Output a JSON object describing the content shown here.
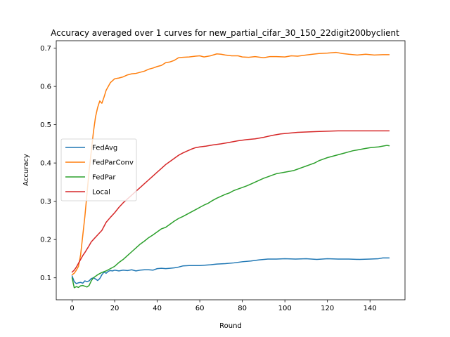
{
  "chart_data": {
    "type": "line",
    "title": "Accuracy averaged over 1 curves for new_partial_cifar_30_150_22digit200byclient",
    "xlabel": "Round",
    "ylabel": "Accuracy",
    "xlim": [
      -7.45,
      156.45
    ],
    "ylim": [
      0.0426,
      0.7194
    ],
    "xticks": [
      0,
      20,
      40,
      60,
      80,
      100,
      120,
      140
    ],
    "yticks": [
      0.1,
      0.2,
      0.3,
      0.4,
      0.5,
      0.6,
      0.7
    ],
    "legend_position": "center-left",
    "grid": false,
    "series": [
      {
        "name": "FedAvg",
        "color": "#1f77b4",
        "points": [
          [
            0,
            0.105
          ],
          [
            1,
            0.09
          ],
          [
            2,
            0.085
          ],
          [
            3,
            0.087
          ],
          [
            4,
            0.088
          ],
          [
            5,
            0.086
          ],
          [
            6,
            0.092
          ],
          [
            7,
            0.09
          ],
          [
            8,
            0.092
          ],
          [
            9,
            0.098
          ],
          [
            10,
            0.1
          ],
          [
            11,
            0.097
          ],
          [
            12,
            0.093
          ],
          [
            13,
            0.098
          ],
          [
            14,
            0.108
          ],
          [
            15,
            0.115
          ],
          [
            16,
            0.112
          ],
          [
            17,
            0.117
          ],
          [
            18,
            0.119
          ],
          [
            19,
            0.118
          ],
          [
            20,
            0.12
          ],
          [
            22,
            0.118
          ],
          [
            24,
            0.12
          ],
          [
            26,
            0.119
          ],
          [
            28,
            0.121
          ],
          [
            30,
            0.118
          ],
          [
            32,
            0.12
          ],
          [
            34,
            0.121
          ],
          [
            36,
            0.121
          ],
          [
            38,
            0.12
          ],
          [
            40,
            0.124
          ],
          [
            42,
            0.125
          ],
          [
            44,
            0.124
          ],
          [
            46,
            0.125
          ],
          [
            48,
            0.126
          ],
          [
            50,
            0.128
          ],
          [
            52,
            0.131
          ],
          [
            55,
            0.132
          ],
          [
            60,
            0.132
          ],
          [
            65,
            0.134
          ],
          [
            68,
            0.136
          ],
          [
            72,
            0.137
          ],
          [
            76,
            0.139
          ],
          [
            80,
            0.142
          ],
          [
            84,
            0.144
          ],
          [
            88,
            0.147
          ],
          [
            92,
            0.149
          ],
          [
            96,
            0.149
          ],
          [
            100,
            0.15
          ],
          [
            105,
            0.149
          ],
          [
            110,
            0.15
          ],
          [
            115,
            0.148
          ],
          [
            120,
            0.15
          ],
          [
            125,
            0.149
          ],
          [
            130,
            0.149
          ],
          [
            135,
            0.148
          ],
          [
            140,
            0.149
          ],
          [
            144,
            0.15
          ],
          [
            146,
            0.152
          ],
          [
            149,
            0.152
          ]
        ]
      },
      {
        "name": "FedParConv",
        "color": "#ff7f0e",
        "points": [
          [
            0,
            0.108
          ],
          [
            1,
            0.112
          ],
          [
            2,
            0.12
          ],
          [
            3,
            0.13
          ],
          [
            4,
            0.16
          ],
          [
            5,
            0.21
          ],
          [
            6,
            0.26
          ],
          [
            7,
            0.32
          ],
          [
            8,
            0.38
          ],
          [
            9,
            0.43
          ],
          [
            10,
            0.48
          ],
          [
            11,
            0.52
          ],
          [
            12,
            0.545
          ],
          [
            13,
            0.562
          ],
          [
            14,
            0.556
          ],
          [
            15,
            0.572
          ],
          [
            16,
            0.59
          ],
          [
            17,
            0.6
          ],
          [
            18,
            0.61
          ],
          [
            19,
            0.615
          ],
          [
            20,
            0.62
          ],
          [
            22,
            0.622
          ],
          [
            24,
            0.625
          ],
          [
            26,
            0.63
          ],
          [
            28,
            0.633
          ],
          [
            30,
            0.634
          ],
          [
            32,
            0.637
          ],
          [
            34,
            0.64
          ],
          [
            36,
            0.645
          ],
          [
            38,
            0.648
          ],
          [
            40,
            0.652
          ],
          [
            42,
            0.655
          ],
          [
            44,
            0.662
          ],
          [
            46,
            0.664
          ],
          [
            48,
            0.668
          ],
          [
            50,
            0.675
          ],
          [
            52,
            0.676
          ],
          [
            55,
            0.677
          ],
          [
            58,
            0.679
          ],
          [
            60,
            0.68
          ],
          [
            62,
            0.677
          ],
          [
            65,
            0.68
          ],
          [
            68,
            0.685
          ],
          [
            70,
            0.684
          ],
          [
            72,
            0.682
          ],
          [
            75,
            0.68
          ],
          [
            78,
            0.68
          ],
          [
            80,
            0.677
          ],
          [
            83,
            0.676
          ],
          [
            86,
            0.678
          ],
          [
            90,
            0.675
          ],
          [
            93,
            0.678
          ],
          [
            96,
            0.678
          ],
          [
            100,
            0.677
          ],
          [
            103,
            0.68
          ],
          [
            106,
            0.679
          ],
          [
            110,
            0.682
          ],
          [
            113,
            0.684
          ],
          [
            116,
            0.686
          ],
          [
            120,
            0.687
          ],
          [
            124,
            0.689
          ],
          [
            127,
            0.686
          ],
          [
            130,
            0.684
          ],
          [
            134,
            0.682
          ],
          [
            138,
            0.684
          ],
          [
            142,
            0.682
          ],
          [
            146,
            0.683
          ],
          [
            149,
            0.683
          ]
        ]
      },
      {
        "name": "FedPar",
        "color": "#2ca02c",
        "points": [
          [
            0,
            0.1
          ],
          [
            1,
            0.074
          ],
          [
            2,
            0.077
          ],
          [
            3,
            0.075
          ],
          [
            4,
            0.079
          ],
          [
            5,
            0.08
          ],
          [
            6,
            0.078
          ],
          [
            7,
            0.076
          ],
          [
            8,
            0.08
          ],
          [
            9,
            0.092
          ],
          [
            10,
            0.1
          ],
          [
            12,
            0.108
          ],
          [
            14,
            0.114
          ],
          [
            16,
            0.118
          ],
          [
            18,
            0.124
          ],
          [
            20,
            0.13
          ],
          [
            22,
            0.14
          ],
          [
            24,
            0.148
          ],
          [
            26,
            0.158
          ],
          [
            28,
            0.168
          ],
          [
            30,
            0.178
          ],
          [
            32,
            0.188
          ],
          [
            34,
            0.196
          ],
          [
            36,
            0.205
          ],
          [
            38,
            0.212
          ],
          [
            40,
            0.22
          ],
          [
            42,
            0.228
          ],
          [
            44,
            0.232
          ],
          [
            46,
            0.24
          ],
          [
            48,
            0.248
          ],
          [
            50,
            0.255
          ],
          [
            52,
            0.26
          ],
          [
            54,
            0.266
          ],
          [
            56,
            0.272
          ],
          [
            58,
            0.278
          ],
          [
            60,
            0.284
          ],
          [
            62,
            0.29
          ],
          [
            64,
            0.295
          ],
          [
            66,
            0.302
          ],
          [
            68,
            0.308
          ],
          [
            70,
            0.313
          ],
          [
            72,
            0.318
          ],
          [
            74,
            0.322
          ],
          [
            76,
            0.328
          ],
          [
            78,
            0.332
          ],
          [
            80,
            0.336
          ],
          [
            82,
            0.34
          ],
          [
            84,
            0.345
          ],
          [
            86,
            0.35
          ],
          [
            88,
            0.355
          ],
          [
            90,
            0.36
          ],
          [
            92,
            0.364
          ],
          [
            94,
            0.368
          ],
          [
            96,
            0.372
          ],
          [
            98,
            0.374
          ],
          [
            100,
            0.376
          ],
          [
            102,
            0.378
          ],
          [
            104,
            0.38
          ],
          [
            106,
            0.384
          ],
          [
            108,
            0.388
          ],
          [
            110,
            0.392
          ],
          [
            112,
            0.396
          ],
          [
            114,
            0.4
          ],
          [
            116,
            0.406
          ],
          [
            118,
            0.41
          ],
          [
            120,
            0.414
          ],
          [
            122,
            0.417
          ],
          [
            124,
            0.42
          ],
          [
            126,
            0.423
          ],
          [
            128,
            0.426
          ],
          [
            130,
            0.429
          ],
          [
            132,
            0.432
          ],
          [
            134,
            0.434
          ],
          [
            136,
            0.436
          ],
          [
            138,
            0.438
          ],
          [
            140,
            0.44
          ],
          [
            142,
            0.441
          ],
          [
            144,
            0.442
          ],
          [
            146,
            0.444
          ],
          [
            148,
            0.446
          ],
          [
            149,
            0.445
          ]
        ]
      },
      {
        "name": "Local",
        "color": "#d62728",
        "points": [
          [
            0,
            0.115
          ],
          [
            1,
            0.12
          ],
          [
            2,
            0.128
          ],
          [
            3,
            0.138
          ],
          [
            4,
            0.148
          ],
          [
            5,
            0.158
          ],
          [
            6,
            0.166
          ],
          [
            7,
            0.175
          ],
          [
            8,
            0.184
          ],
          [
            9,
            0.194
          ],
          [
            10,
            0.2
          ],
          [
            12,
            0.212
          ],
          [
            14,
            0.224
          ],
          [
            16,
            0.245
          ],
          [
            18,
            0.258
          ],
          [
            20,
            0.27
          ],
          [
            22,
            0.284
          ],
          [
            24,
            0.296
          ],
          [
            26,
            0.306
          ],
          [
            28,
            0.316
          ],
          [
            30,
            0.326
          ],
          [
            32,
            0.336
          ],
          [
            34,
            0.346
          ],
          [
            36,
            0.356
          ],
          [
            38,
            0.366
          ],
          [
            40,
            0.376
          ],
          [
            42,
            0.386
          ],
          [
            44,
            0.396
          ],
          [
            46,
            0.404
          ],
          [
            48,
            0.412
          ],
          [
            50,
            0.42
          ],
          [
            52,
            0.426
          ],
          [
            54,
            0.431
          ],
          [
            56,
            0.436
          ],
          [
            58,
            0.44
          ],
          [
            60,
            0.442
          ],
          [
            63,
            0.444
          ],
          [
            66,
            0.447
          ],
          [
            70,
            0.45
          ],
          [
            74,
            0.454
          ],
          [
            78,
            0.458
          ],
          [
            82,
            0.461
          ],
          [
            86,
            0.463
          ],
          [
            90,
            0.467
          ],
          [
            94,
            0.472
          ],
          [
            98,
            0.476
          ],
          [
            102,
            0.478
          ],
          [
            106,
            0.48
          ],
          [
            110,
            0.481
          ],
          [
            115,
            0.482
          ],
          [
            120,
            0.483
          ],
          [
            125,
            0.484
          ],
          [
            130,
            0.484
          ],
          [
            135,
            0.484
          ],
          [
            140,
            0.484
          ],
          [
            145,
            0.484
          ],
          [
            149,
            0.484
          ]
        ]
      }
    ]
  }
}
